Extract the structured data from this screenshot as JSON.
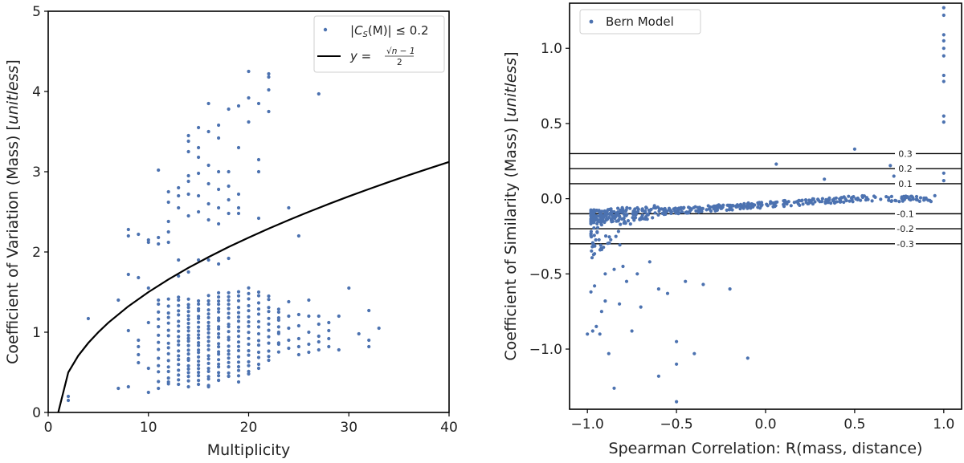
{
  "chart_data": [
    {
      "type": "scatter",
      "xlabel": "Multiplicity",
      "ylabel": "Coefficient of Variation (Mass) [unitless]",
      "ylabel_plain": "Coefficient of Variation (Mass) [",
      "ylabel_unit": "unitless",
      "ylabel_close": "]",
      "xlim": [
        0,
        40
      ],
      "ylim": [
        0,
        5
      ],
      "xticks": [
        "0",
        "10",
        "20",
        "30",
        "40"
      ],
      "yticks": [
        "0",
        "1",
        "2",
        "3",
        "4",
        "5"
      ],
      "grid": false,
      "legend_position": "top-right",
      "legend": {
        "points": "|C_S(M)| ≤ 0.2",
        "points_parts": [
          "|",
          "C",
          "S",
          "(M)| ≤ 0.2"
        ],
        "curve": "y = √(n−1)/2",
        "curve_parts": [
          "y = ",
          "√n − 1",
          "2"
        ]
      },
      "point_color": "#4c72b0",
      "curve_points": {
        "x": [
          1,
          2,
          3,
          4,
          5,
          6,
          8,
          10,
          12,
          14,
          16,
          18,
          20,
          22,
          24,
          26,
          28,
          30,
          32,
          34,
          36,
          38,
          40
        ],
        "y": [
          0,
          0.5,
          0.707,
          0.866,
          1.0,
          1.118,
          1.323,
          1.5,
          1.658,
          1.803,
          1.936,
          2.062,
          2.179,
          2.291,
          2.398,
          2.5,
          2.598,
          2.693,
          2.784,
          2.872,
          2.958,
          3.041,
          3.122
        ]
      },
      "groups": [
        {
          "n": 2,
          "y": [
            0.15,
            0.2
          ]
        },
        {
          "n": 4,
          "y": [
            1.17
          ]
        },
        {
          "n": 7,
          "y": [
            1.4,
            0.3
          ]
        },
        {
          "n": 8,
          "y": [
            2.28,
            2.2,
            1.72,
            1.02,
            0.32
          ]
        },
        {
          "n": 9,
          "y": [
            2.22,
            1.68,
            0.9,
            0.82,
            0.72,
            0.62
          ]
        },
        {
          "n": 10,
          "y": [
            2.15,
            2.12,
            1.55,
            1.12,
            0.55,
            0.25
          ]
        },
        {
          "n": 11,
          "y": [
            3.02,
            2.18,
            2.1,
            1.4,
            1.35,
            0.3
          ],
          "lo": 0.4,
          "hi": 1.25,
          "k": 10
        },
        {
          "n": 12,
          "y": [
            2.75,
            2.62,
            2.38,
            2.25,
            2.12,
            0.38
          ],
          "lo": 0.35,
          "hi": 1.4,
          "k": 15
        },
        {
          "n": 13,
          "y": [
            2.8,
            2.7,
            2.55,
            1.9,
            1.7,
            0.35
          ],
          "lo": 0.4,
          "hi": 1.45,
          "k": 18
        },
        {
          "n": 14,
          "y": [
            3.45,
            3.38,
            3.25,
            2.95,
            2.88,
            2.72,
            2.45,
            1.75,
            0.32
          ],
          "lo": 0.4,
          "hi": 1.4,
          "k": 22
        },
        {
          "n": 15,
          "y": [
            3.55,
            3.3,
            3.18,
            2.98,
            2.7,
            2.5,
            1.9,
            0.35
          ],
          "lo": 0.4,
          "hi": 1.4,
          "k": 22
        },
        {
          "n": 16,
          "y": [
            3.85,
            3.5,
            3.08,
            2.85,
            2.6,
            2.4,
            1.9,
            0.32
          ],
          "lo": 0.35,
          "hi": 1.45,
          "k": 22
        },
        {
          "n": 17,
          "y": [
            3.58,
            3.42,
            3.0,
            2.78,
            2.55,
            2.35,
            1.85,
            0.4
          ],
          "lo": 0.4,
          "hi": 1.5,
          "k": 22
        },
        {
          "n": 18,
          "y": [
            3.78,
            3.0,
            2.82,
            2.65,
            2.48,
            1.92,
            0.45
          ],
          "lo": 0.45,
          "hi": 1.5,
          "k": 20
        },
        {
          "n": 19,
          "y": [
            3.82,
            3.3,
            2.72,
            2.55,
            2.48,
            0.38
          ],
          "lo": 0.45,
          "hi": 1.5,
          "k": 18
        },
        {
          "n": 20,
          "y": [
            4.25,
            3.92,
            3.62,
            0.48
          ],
          "lo": 0.5,
          "hi": 1.55,
          "k": 16
        },
        {
          "n": 21,
          "y": [
            3.85,
            3.15,
            3.0,
            2.42,
            1.5,
            0.55
          ],
          "lo": 0.6,
          "hi": 1.45,
          "k": 12
        },
        {
          "n": 22,
          "y": [
            4.22,
            4.18,
            4.02,
            3.75,
            1.45,
            0.65
          ],
          "lo": 0.7,
          "hi": 1.4,
          "k": 10
        },
        {
          "n": 23,
          "y": [
            1.25,
            1.15,
            1.0,
            0.85
          ],
          "lo": 0.75,
          "hi": 1.3,
          "k": 6
        },
        {
          "n": 24,
          "y": [
            2.55,
            1.38,
            1.2,
            1.05,
            0.9,
            0.8
          ]
        },
        {
          "n": 25,
          "y": [
            2.2,
            1.22,
            1.08,
            0.92,
            0.82,
            0.72
          ]
        },
        {
          "n": 26,
          "y": [
            1.4,
            1.2,
            1.0,
            0.85,
            0.75
          ]
        },
        {
          "n": 27,
          "y": [
            3.97,
            1.2,
            1.1,
            0.95,
            0.88,
            0.78
          ]
        },
        {
          "n": 28,
          "y": [
            1.12,
            1.02,
            0.92,
            0.82
          ]
        },
        {
          "n": 29,
          "y": [
            1.2,
            0.78
          ]
        },
        {
          "n": 30,
          "y": [
            1.55
          ]
        },
        {
          "n": 31,
          "y": [
            0.98
          ]
        },
        {
          "n": 32,
          "y": [
            1.27,
            0.9,
            0.82
          ]
        },
        {
          "n": 33,
          "y": [
            1.05
          ]
        }
      ]
    },
    {
      "type": "scatter",
      "xlabel": "Spearman Correlation: R(mass, distance)",
      "ylabel": "Coefficient of Similarity (Mass) [unitless]",
      "ylabel_plain": "Coefficient of Similarity (Mass) [",
      "ylabel_unit": "unitless",
      "ylabel_close": "]",
      "xlim": [
        -1.1,
        1.1
      ],
      "ylim": [
        -1.4,
        1.3
      ],
      "xticks": [
        "−1.0",
        "−0.5",
        "0.0",
        "0.5",
        "1.0"
      ],
      "yticks": [
        "−1.0",
        "−0.5",
        "0.0",
        "0.5",
        "1.0"
      ],
      "grid": false,
      "legend_position": "top-left",
      "legend": {
        "points": "Bern Model"
      },
      "point_color": "#4c72b0",
      "hlines": [
        {
          "y": 0.3,
          "label": "0.3"
        },
        {
          "y": 0.2,
          "label": "0.2"
        },
        {
          "y": 0.1,
          "label": "0.1"
        },
        {
          "y": -0.1,
          "label": "-0.1"
        },
        {
          "y": -0.2,
          "label": "-0.2"
        },
        {
          "y": -0.3,
          "label": "-0.3"
        }
      ],
      "points": {
        "x": [
          1.0,
          1.0,
          1.0,
          1.0,
          1.0,
          1.0,
          1.0,
          1.0,
          1.0,
          1.0,
          1.0,
          1.0,
          0.5,
          0.7,
          0.72,
          0.06,
          0.33,
          -1.0,
          -0.97,
          -0.95,
          -0.92,
          -0.98,
          -0.96,
          -0.9,
          -0.85,
          -0.8,
          -0.78,
          -0.82,
          -0.7,
          -0.6,
          -0.55,
          -0.5,
          -0.5,
          -0.45,
          -0.35,
          -0.2,
          -0.4,
          -0.1,
          -0.6,
          -0.85,
          -0.5,
          -0.65,
          -0.75,
          -0.88,
          -0.93,
          -0.9,
          -0.72
        ],
        "y": [
          1.27,
          1.22,
          1.09,
          1.05,
          1.0,
          0.95,
          0.82,
          0.78,
          0.55,
          0.51,
          0.17,
          0.12,
          0.33,
          0.22,
          0.15,
          0.23,
          0.13,
          -0.9,
          -0.88,
          -0.85,
          -0.75,
          -0.62,
          -0.58,
          -0.5,
          -0.47,
          -0.45,
          -0.55,
          -0.7,
          -0.72,
          -0.6,
          -0.63,
          -0.95,
          -1.35,
          -0.55,
          -0.57,
          -0.6,
          -1.03,
          -1.06,
          -1.18,
          -1.26,
          -1.1,
          -0.42,
          -0.88,
          -1.03,
          -0.9,
          -0.68,
          -0.5
        ]
      },
      "band_points": {
        "count": 560,
        "x_range": [
          -0.98,
          0.95
        ],
        "y_at_x": "-0.12 + 0.12*(x+1)/1.5 (capped near 0)"
      }
    }
  ]
}
